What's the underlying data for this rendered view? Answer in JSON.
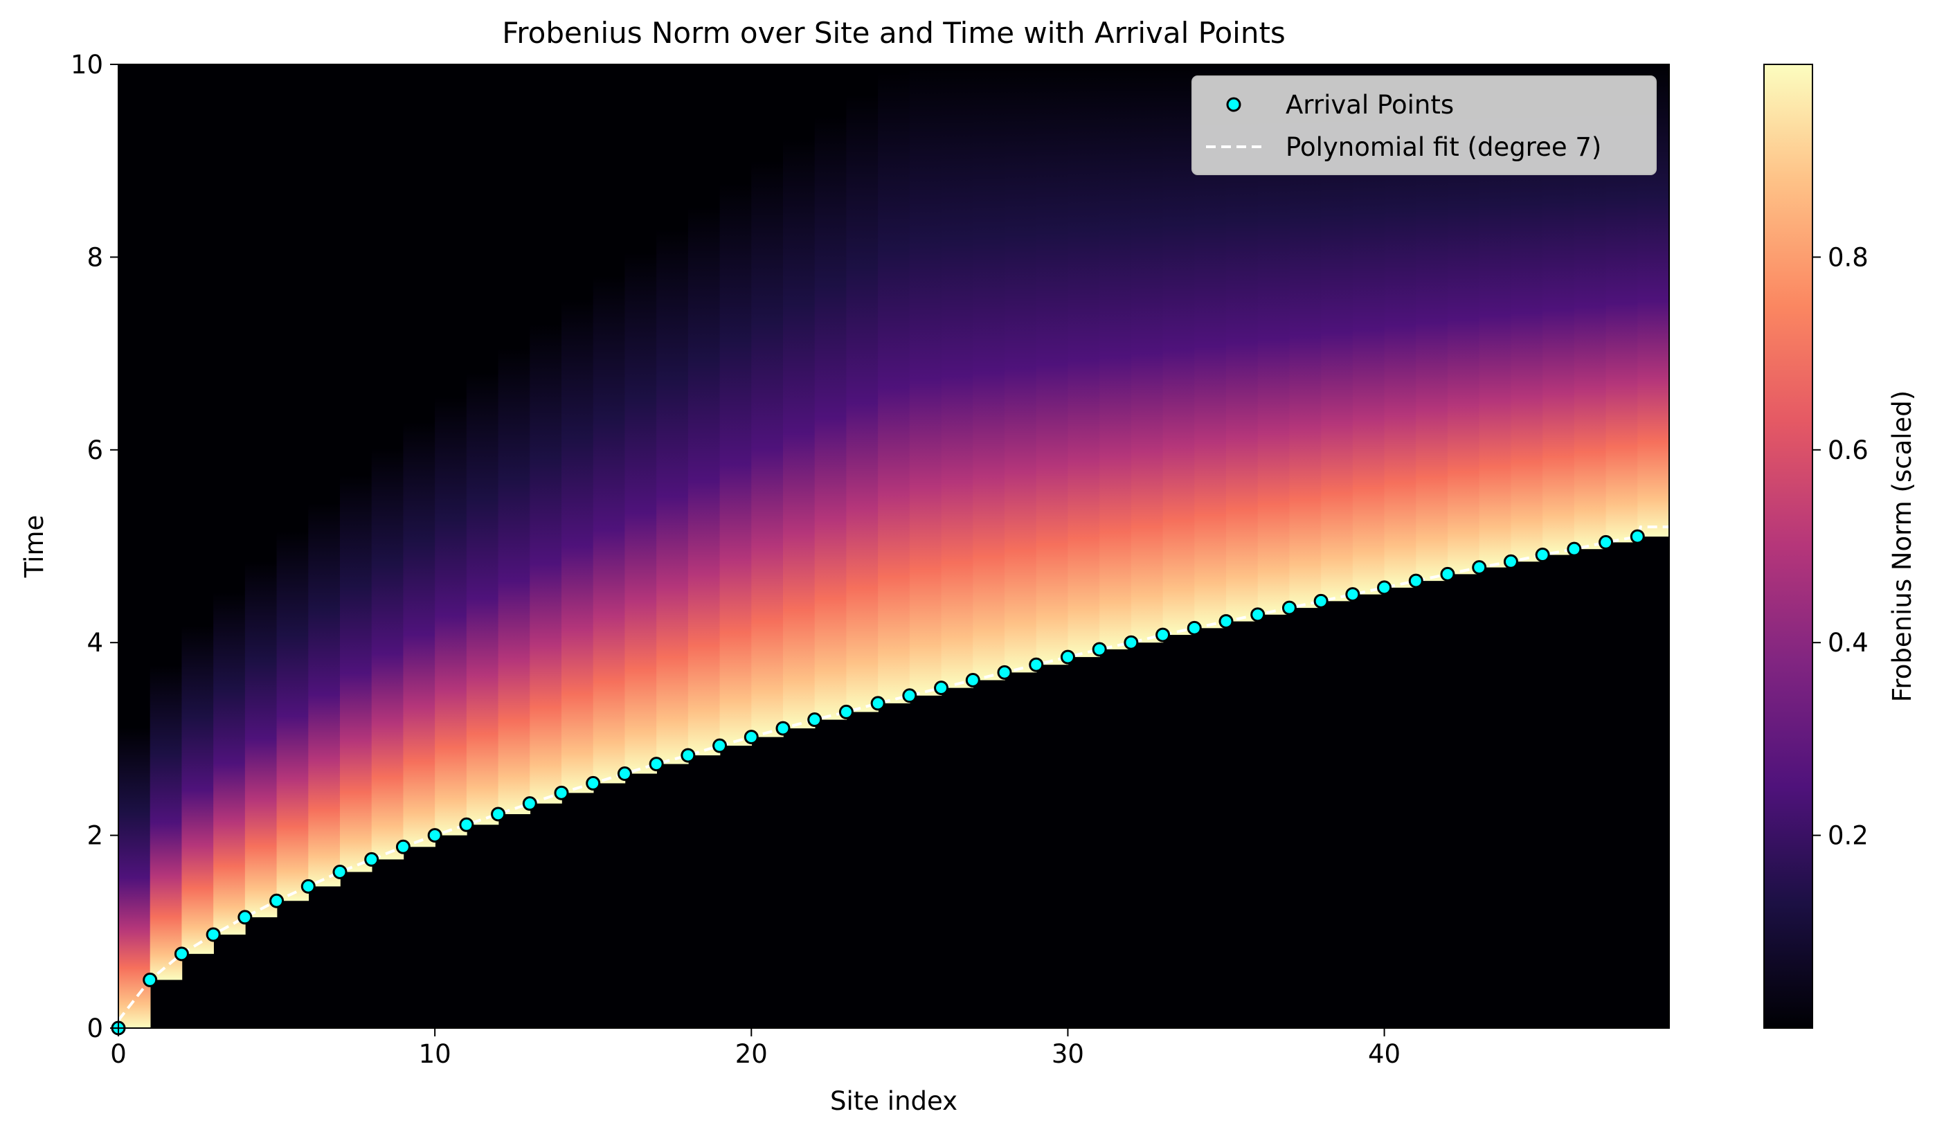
{
  "chart_data": {
    "type": "heatmap",
    "title": "Frobenius Norm over Site and Time with Arrival Points",
    "xlabel": "Site index",
    "ylabel": "Time",
    "xlim": [
      0,
      49
    ],
    "ylim": [
      0,
      10
    ],
    "x_ticks": [
      0,
      10,
      20,
      30,
      40
    ],
    "y_ticks": [
      0,
      2,
      4,
      6,
      8,
      10
    ],
    "colormap": "magma",
    "colorbar": {
      "label": "Frobenius Norm (scaled)",
      "range": [
        0,
        1
      ],
      "ticks": [
        0.2,
        0.4,
        0.6,
        0.8
      ]
    },
    "legend_position": "top-right",
    "series": [
      {
        "name": "Arrival Points",
        "kind": "scatter",
        "color": "#00ffff",
        "edgecolor": "#000000",
        "x": [
          0,
          1,
          2,
          3,
          4,
          5,
          6,
          7,
          8,
          9,
          10,
          11,
          12,
          13,
          14,
          15,
          16,
          17,
          18,
          19,
          20,
          21,
          22,
          23,
          24,
          25,
          26,
          27,
          28,
          29,
          30,
          31,
          32,
          33,
          34,
          35,
          36,
          37,
          38,
          39,
          40,
          41,
          42,
          43,
          44,
          45,
          46,
          47,
          48
        ],
        "y": [
          0.0,
          0.5,
          0.77,
          0.97,
          1.15,
          1.32,
          1.47,
          1.62,
          1.75,
          1.88,
          2.0,
          2.11,
          2.22,
          2.33,
          2.44,
          2.54,
          2.64,
          2.74,
          2.83,
          2.93,
          3.02,
          3.11,
          3.2,
          3.28,
          3.37,
          3.45,
          3.53,
          3.61,
          3.69,
          3.77,
          3.85,
          3.93,
          4.0,
          4.08,
          4.15,
          4.22,
          4.29,
          4.36,
          4.43,
          4.5,
          4.57,
          4.64,
          4.71,
          4.78,
          4.84,
          4.91,
          4.97,
          5.04,
          5.1
        ]
      },
      {
        "name": "Polynomial fit (degree 7)",
        "kind": "line",
        "style": "dashed",
        "color": "#ffffff",
        "x_range": [
          0,
          49
        ],
        "y_at_ends": [
          0.08,
          5.2
        ]
      }
    ]
  }
}
